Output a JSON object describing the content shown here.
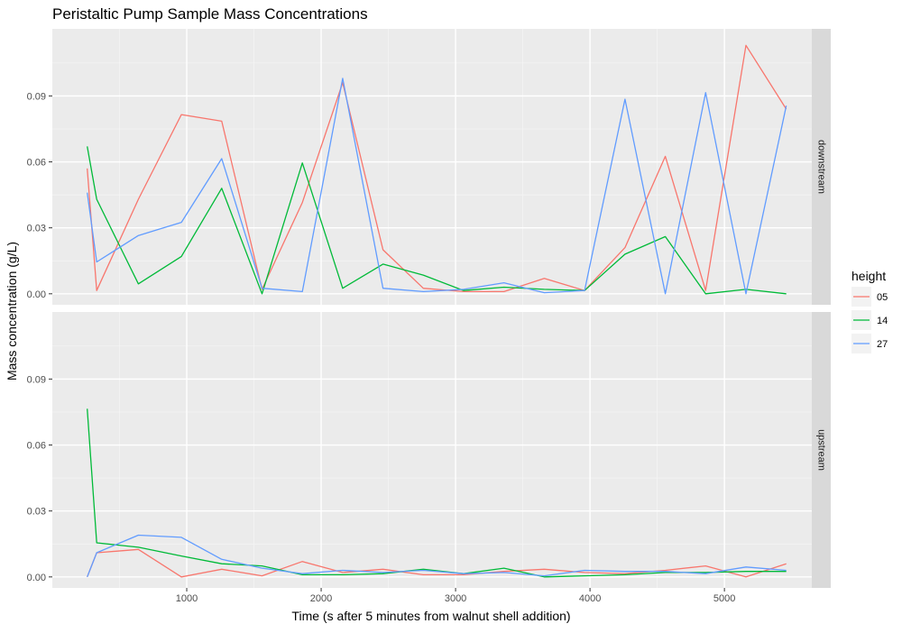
{
  "chart_data": {
    "type": "line",
    "title": "Peristaltic Pump Sample Mass Concentrations",
    "xlabel": "Time (s after 5 minutes from walnut shell addition)",
    "ylabel": "Mass concentration (g/L)",
    "xlim": [
      0,
      5650
    ],
    "ylim": [
      -0.005,
      0.1205
    ],
    "x_ticks": [
      1000,
      2000,
      3000,
      4000,
      5000
    ],
    "y_ticks": [
      0.0,
      0.03,
      0.06,
      0.09
    ],
    "y_tick_labels": [
      "0.00",
      "0.03",
      "0.06",
      "0.09"
    ],
    "grid": true,
    "legend": {
      "title": "height",
      "position": "right"
    },
    "facets": [
      {
        "label": "downstream",
        "series": [
          {
            "name": "05",
            "color": "#F8766D",
            "x": [
              260,
              330,
              640,
              960,
              1260,
              1560,
              1860,
              2160,
              2460,
              2760,
              3060,
              3360,
              3660,
              3960,
              4260,
              4560,
              4860,
              5160,
              5460
            ],
            "y": [
              0.057,
              0.0015,
              0.043,
              0.0815,
              0.0785,
              0.002,
              0.0415,
              0.096,
              0.02,
              0.0025,
              0.001,
              0.001,
              0.007,
              0.0015,
              0.021,
              0.0625,
              0.0015,
              0.113,
              0.084
            ]
          },
          {
            "name": "14",
            "color": "#00BA38",
            "x": [
              260,
              330,
              640,
              960,
              1260,
              1560,
              1860,
              2160,
              2460,
              2760,
              3060,
              3360,
              3660,
              3960,
              4260,
              4560,
              4860,
              5160,
              5460
            ],
            "y": [
              0.067,
              0.043,
              0.0045,
              0.017,
              0.048,
              0.0,
              0.0595,
              0.0025,
              0.0135,
              0.0085,
              0.0015,
              0.003,
              0.002,
              0.0015,
              0.018,
              0.026,
              0.0,
              0.002,
              0.0
            ]
          },
          {
            "name": "27",
            "color": "#619CFF",
            "x": [
              260,
              330,
              640,
              960,
              1260,
              1560,
              1860,
              2160,
              2460,
              2760,
              3060,
              3360,
              3660,
              3960,
              4260,
              4560,
              4860,
              5160,
              5460
            ],
            "y": [
              0.046,
              0.0145,
              0.0265,
              0.0325,
              0.0615,
              0.0025,
              0.001,
              0.098,
              0.0025,
              0.001,
              0.002,
              0.005,
              0.0005,
              0.0015,
              0.0885,
              0.0,
              0.0915,
              0.0,
              0.0855
            ]
          }
        ]
      },
      {
        "label": "upstream",
        "series": [
          {
            "name": "05",
            "color": "#F8766D",
            "x": [
              260,
              330,
              640,
              960,
              1260,
              1560,
              1860,
              2160,
              2460,
              2760,
              3060,
              3360,
              3660,
              3960,
              4260,
              4560,
              4860,
              5160,
              5460
            ],
            "y": [
              0.0,
              0.011,
              0.0125,
              0.0,
              0.0035,
              0.0005,
              0.007,
              0.002,
              0.0035,
              0.001,
              0.001,
              0.0025,
              0.0035,
              0.002,
              0.0015,
              0.003,
              0.005,
              0.0,
              0.006
            ]
          },
          {
            "name": "14",
            "color": "#00BA38",
            "x": [
              260,
              330,
              640,
              960,
              1260,
              1560,
              1860,
              2160,
              2460,
              2760,
              3060,
              3360,
              3660,
              3960,
              4260,
              4560,
              4860,
              5160,
              5460
            ],
            "y": [
              0.0765,
              0.0155,
              0.0135,
              0.0095,
              0.006,
              0.005,
              0.001,
              0.001,
              0.0015,
              0.0035,
              0.0015,
              0.004,
              0.0,
              0.0005,
              0.001,
              0.002,
              0.002,
              0.0025,
              0.0025
            ]
          },
          {
            "name": "27",
            "color": "#619CFF",
            "x": [
              260,
              330,
              640,
              960,
              1260,
              1560,
              1860,
              2160,
              2460,
              2760,
              3060,
              3360,
              3660,
              3960,
              4260,
              4560,
              4860,
              5160,
              5460
            ],
            "y": [
              0.0,
              0.011,
              0.019,
              0.018,
              0.008,
              0.004,
              0.0015,
              0.003,
              0.002,
              0.003,
              0.0015,
              0.002,
              0.0005,
              0.003,
              0.0025,
              0.0025,
              0.0015,
              0.0045,
              0.003
            ]
          }
        ]
      }
    ]
  }
}
